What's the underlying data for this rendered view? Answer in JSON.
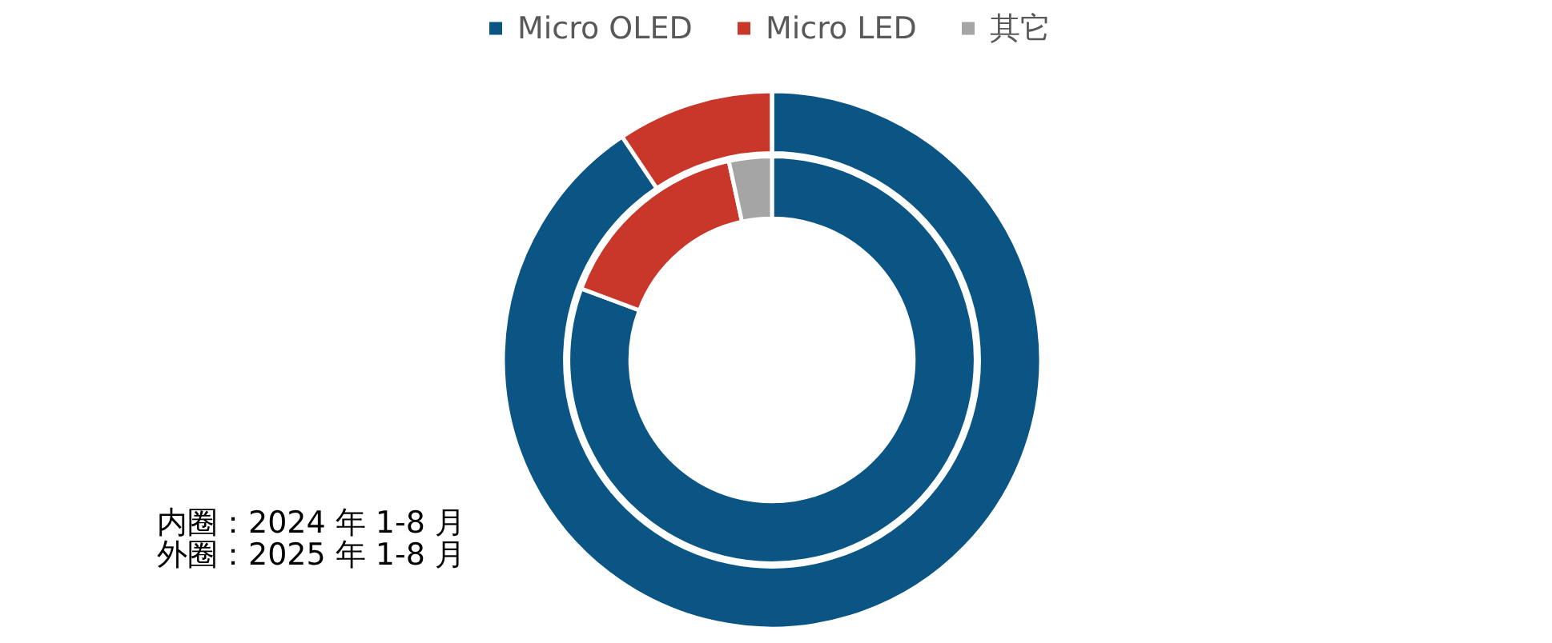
{
  "chart_data": {
    "type": "donut",
    "categories": [
      "Micro OLED",
      "Micro LED",
      "其它"
    ],
    "colors": [
      "#0a5584",
      "#c8372a",
      "#a5a5a5"
    ],
    "series": [
      {
        "values": [
          80.7,
          15.9,
          3.4
        ]
      },
      {
        "values": [
          90.6,
          9.4,
          0
        ]
      }
    ],
    "legend": "top",
    "annotations": [
      "内圈：2024 年 1-8 月",
      "外圈：2025 年 1-8 月"
    ]
  }
}
